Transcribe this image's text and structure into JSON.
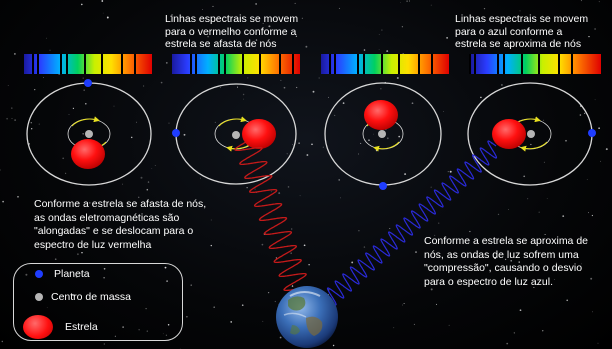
{
  "top_text_left": [
    "Linhas espectrais se movem",
    "para o vermelho conforme a",
    "estrela se afasta de nós"
  ],
  "top_text_right": [
    "Linhas espectrais se movem",
    "para o azul conforme a",
    "estrela se aproxima de nós"
  ],
  "caption_left": [
    "Conforme a estrela se afasta de nós,",
    "as ondas eletromagnéticas são",
    "\"alongadas\" e se deslocam  para o",
    "espectro de luz vermelha"
  ],
  "caption_right": [
    "Conforme a estrela se aproxima de",
    "nós, as ondas de luz sofrem uma",
    "\"compressão\", causando o desvio",
    "para o espectro de luz azul."
  ],
  "legend": {
    "planet": "Planeta",
    "center_of_mass": "Centro de massa",
    "star": "Estrela"
  },
  "colors": {
    "star": "#ff1010",
    "planet": "#1f3dff",
    "center_of_mass": "#b5b5b5",
    "wave_red": "#c41a1a",
    "wave_blue": "#2a2ad8",
    "orbit_arrows": "#e8e020"
  }
}
